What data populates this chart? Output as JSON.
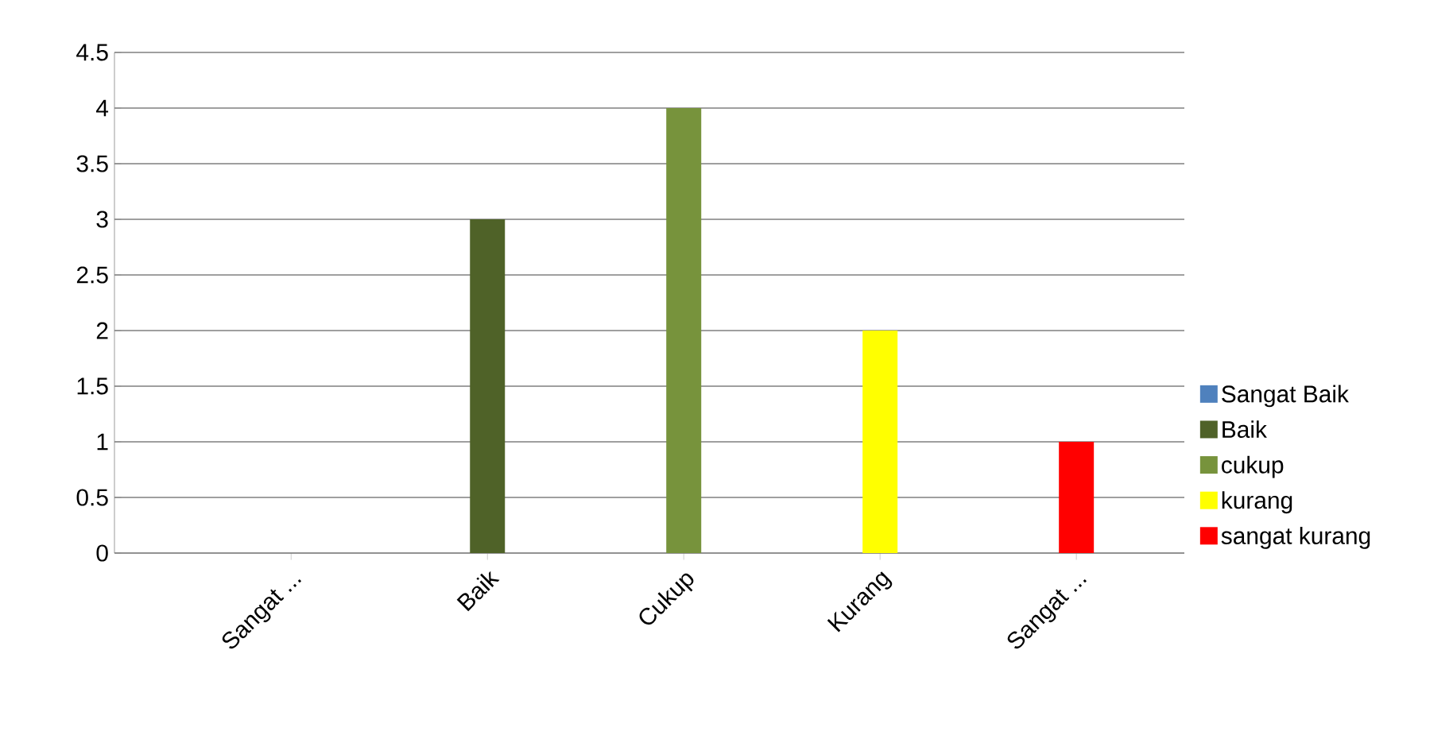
{
  "chart_data": {
    "type": "bar",
    "categories": [
      "Sangat ...",
      "Baik",
      "Cukup",
      "Kurang",
      "Sangat ..."
    ],
    "series": [
      {
        "name": "Sangat Baik",
        "color": "#4f81bd",
        "values": [
          0,
          null,
          null,
          null,
          null
        ]
      },
      {
        "name": "Baik",
        "color": "#4f6228",
        "values": [
          null,
          3,
          null,
          null,
          null
        ]
      },
      {
        "name": "cukup",
        "color": "#77933c",
        "values": [
          null,
          null,
          4,
          null,
          null
        ]
      },
      {
        "name": "kurang",
        "color": "#ffff00",
        "values": [
          null,
          null,
          null,
          2,
          null
        ]
      },
      {
        "name": "sangat kurang",
        "color": "#ff0000",
        "values": [
          null,
          null,
          null,
          null,
          1
        ]
      }
    ],
    "ylim": [
      0,
      4.5
    ],
    "yticks": [
      0,
      0.5,
      1,
      1.5,
      2,
      2.5,
      3,
      3.5,
      4,
      4.5
    ],
    "grid": "y",
    "legend": "bottom right"
  }
}
